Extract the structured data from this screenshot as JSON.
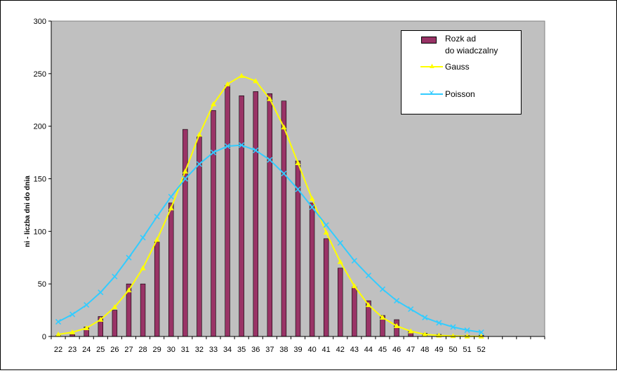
{
  "chart_data": {
    "type": "bar",
    "ylabel": "ni - liczba  dni do dnia",
    "ylim": [
      0,
      300
    ],
    "yticks": [
      0,
      50,
      100,
      150,
      200,
      250,
      300
    ],
    "categories": [
      "22",
      "23",
      "24",
      "25",
      "26",
      "27",
      "28",
      "29",
      "30",
      "31",
      "32",
      "33",
      "34",
      "35",
      "36",
      "37",
      "38",
      "39",
      "40",
      "41",
      "42",
      "43",
      "44",
      "45",
      "46",
      "47",
      "48",
      "49",
      "50",
      "51",
      "52"
    ],
    "empty_slots_after": 4,
    "colors": {
      "plot_bg": "#c0c0c0",
      "bar": "#993366",
      "gauss": "#ffff00",
      "poisson": "#33ccff"
    },
    "series": [
      {
        "name": "Rozk ad do wiadczalny",
        "kind": "bar",
        "values": [
          1,
          2,
          9,
          19,
          25,
          50,
          50,
          90,
          127,
          197,
          190,
          215,
          239,
          229,
          233,
          231,
          224,
          167,
          127,
          93,
          65,
          47,
          34,
          20,
          16,
          5,
          3,
          2,
          1,
          1,
          1
        ]
      },
      {
        "name": "Gauss",
        "kind": "line",
        "marker": "triangle",
        "values": [
          2,
          4,
          8,
          16,
          28,
          44,
          65,
          92,
          122,
          157,
          192,
          221,
          240,
          248,
          243,
          226,
          199,
          165,
          131,
          99,
          71,
          48,
          30,
          18,
          10,
          5,
          2,
          1,
          0.5,
          0.2,
          0.1
        ]
      },
      {
        "name": "Poisson",
        "kind": "line",
        "marker": "x",
        "values": [
          14,
          21,
          30,
          42,
          57,
          75,
          94,
          114,
          133,
          150,
          164,
          175,
          181,
          182,
          177,
          168,
          155,
          140,
          123,
          106,
          89,
          72,
          58,
          45,
          34,
          26,
          18,
          13,
          9,
          6,
          4
        ]
      }
    ]
  },
  "legend": {
    "bar_label_line1": "Rozk ad",
    "bar_label_line2": "do  wiadczalny",
    "gauss_label": "Gauss",
    "poisson_label": "Poisson"
  }
}
